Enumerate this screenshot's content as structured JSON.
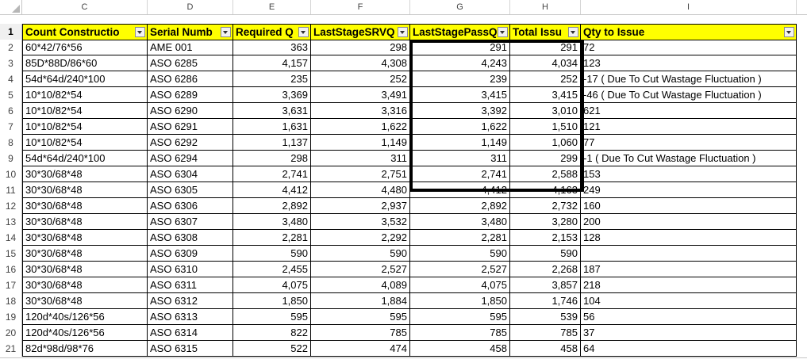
{
  "sheet": {
    "column_letters": [
      "C",
      "D",
      "E",
      "F",
      "G",
      "H",
      "I"
    ],
    "header_row_number": "1",
    "headers": [
      "Count Constructio",
      "Serial Numb",
      "Required Q",
      "LastStageSRVQ",
      "LastStagePassQ",
      "Total Issu",
      "Qty to Issue"
    ],
    "rows": [
      {
        "n": "2",
        "c": "60*42/76*56",
        "d": "AME 001",
        "e": "363",
        "f": "298",
        "g": "291",
        "h": "291",
        "i": "72"
      },
      {
        "n": "3",
        "c": "85D*88D/86*60",
        "d": "ASO 6285",
        "e": "4,157",
        "f": "4,308",
        "g": "4,243",
        "h": "4,034",
        "i": "123"
      },
      {
        "n": "4",
        "c": "54d*64d/240*100",
        "d": "ASO 6286",
        "e": "235",
        "f": "252",
        "g": "239",
        "h": "252",
        "i": "-17 ( Due To Cut Wastage Fluctuation )"
      },
      {
        "n": "5",
        "c": "10*10/82*54",
        "d": "ASO 6289",
        "e": "3,369",
        "f": "3,491",
        "g": "3,415",
        "h": "3,415",
        "i": "-46 ( Due To Cut Wastage Fluctuation )"
      },
      {
        "n": "6",
        "c": "10*10/82*54",
        "d": "ASO 6290",
        "e": "3,631",
        "f": "3,316",
        "g": "3,392",
        "h": "3,010",
        "i": "621"
      },
      {
        "n": "7",
        "c": "10*10/82*54",
        "d": "ASO 6291",
        "e": "1,631",
        "f": "1,622",
        "g": "1,622",
        "h": "1,510",
        "i": "121"
      },
      {
        "n": "8",
        "c": "10*10/82*54",
        "d": "ASO 6292",
        "e": "1,137",
        "f": "1,149",
        "g": "1,149",
        "h": "1,060",
        "i": "77"
      },
      {
        "n": "9",
        "c": "54d*64d/240*100",
        "d": "ASO 6294",
        "e": "298",
        "f": "311",
        "g": "311",
        "h": "299",
        "i": "-1 ( Due To Cut Wastage Fluctuation )"
      },
      {
        "n": "10",
        "c": "30*30/68*48",
        "d": "ASO 6304",
        "e": "2,741",
        "f": "2,751",
        "g": "2,741",
        "h": "2,588",
        "i": "153"
      },
      {
        "n": "11",
        "c": "30*30/68*48",
        "d": "ASO 6305",
        "e": "4,412",
        "f": "4,480",
        "g": "4,412",
        "h": "4,163",
        "i": "249"
      },
      {
        "n": "12",
        "c": "30*30/68*48",
        "d": "ASO 6306",
        "e": "2,892",
        "f": "2,937",
        "g": "2,892",
        "h": "2,732",
        "i": "160"
      },
      {
        "n": "13",
        "c": "30*30/68*48",
        "d": "ASO 6307",
        "e": "3,480",
        "f": "3,532",
        "g": "3,480",
        "h": "3,280",
        "i": "200"
      },
      {
        "n": "14",
        "c": "30*30/68*48",
        "d": "ASO 6308",
        "e": "2,281",
        "f": "2,292",
        "g": "2,281",
        "h": "2,153",
        "i": "128"
      },
      {
        "n": "15",
        "c": "30*30/68*48",
        "d": "ASO 6309",
        "e": "590",
        "f": "590",
        "g": "590",
        "h": "590",
        "i": ""
      },
      {
        "n": "16",
        "c": "30*30/68*48",
        "d": "ASO 6310",
        "e": "2,455",
        "f": "2,527",
        "g": "2,527",
        "h": "2,268",
        "i": "187"
      },
      {
        "n": "17",
        "c": "30*30/68*48",
        "d": "ASO 6311",
        "e": "4,075",
        "f": "4,089",
        "g": "4,075",
        "h": "3,857",
        "i": "218"
      },
      {
        "n": "18",
        "c": "30*30/68*48",
        "d": "ASO 6312",
        "e": "1,850",
        "f": "1,884",
        "g": "1,850",
        "h": "1,746",
        "i": "104"
      },
      {
        "n": "19",
        "c": "120d*40s/126*56",
        "d": "ASO 6313",
        "e": "595",
        "f": "595",
        "g": "595",
        "h": "539",
        "i": "56"
      },
      {
        "n": "20",
        "c": "120d*40s/126*56",
        "d": "ASO 6314",
        "e": "822",
        "f": "785",
        "g": "785",
        "h": "785",
        "i": "37"
      },
      {
        "n": "21",
        "c": "82d*98d/98*76",
        "d": "ASO 6315",
        "e": "522",
        "f": "474",
        "g": "458",
        "h": "458",
        "i": "64"
      }
    ]
  },
  "colors": {
    "header_fill": "#ffff00",
    "grid_line": "#000000",
    "highlight_border": "#000000"
  }
}
